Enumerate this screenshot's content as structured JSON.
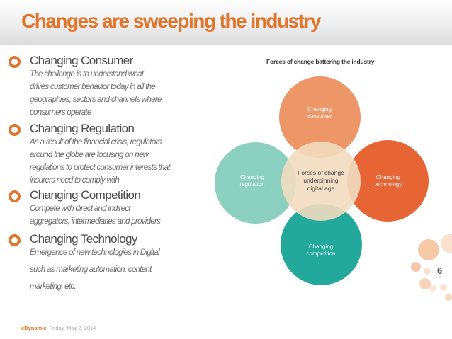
{
  "slide": {
    "title": "Changes are sweeping the industry",
    "page_number": "6"
  },
  "bullets": [
    {
      "heading": "Changing Consumer",
      "lines": [
        "The challenge is to understand what",
        "drives customer behavior today in all the",
        "geographies, sectors and channels where",
        "consumers operate"
      ]
    },
    {
      "heading": "Changing Regulation",
      "lines": [
        "As a result of the financial crisis, regulators",
        "around the globe are focusing on new",
        "regulations to protect consumer interests that",
        "insurers need to comply with"
      ]
    },
    {
      "heading": "Changing Competition",
      "lines": [
        "Compete with direct and indirect",
        "aggregators, intermediaries and providers"
      ]
    },
    {
      "heading": "Changing Technology",
      "lines": [
        "Emergence of new technologies in Digital",
        "such as marketing automation, content",
        "marketing, etc."
      ]
    }
  ],
  "diagram": {
    "title": "Forces of change battering the industry",
    "center": [
      "Forces of change",
      "underpinning",
      "digital age"
    ],
    "top": [
      "Changing",
      "consumer"
    ],
    "left": [
      "Changing",
      "regulation"
    ],
    "right": [
      "Changing",
      "technology"
    ],
    "bottom": [
      "Changing",
      "competition"
    ],
    "colors": {
      "top": "#ec8e5c",
      "left": "#86cdbd",
      "right": "#e65d2a",
      "bottom": "#17a497",
      "center": "#f1dcc0"
    }
  },
  "footer": {
    "brand": "eDynamic,",
    "date": "Friday, May 2, 2014"
  }
}
